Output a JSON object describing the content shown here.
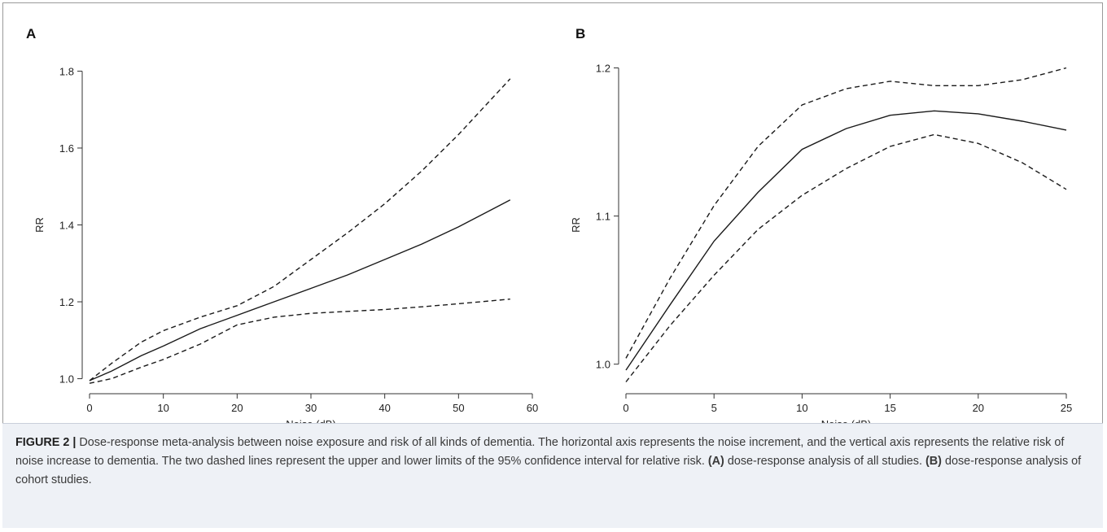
{
  "chart_data": [
    {
      "panel": "A",
      "type": "line",
      "xlabel": "Noise (dB)",
      "ylabel": "RR",
      "xlim": [
        0,
        60
      ],
      "ylim": [
        0.98,
        1.82
      ],
      "xticks": [
        0,
        10,
        20,
        30,
        40,
        50,
        60
      ],
      "yticks": [
        1.0,
        1.2,
        1.4,
        1.6,
        1.8
      ],
      "ytick_labels": [
        "1.0",
        "1.2",
        "1.4",
        "1.6",
        "1.8"
      ],
      "grid": false,
      "series": [
        {
          "style": "solid",
          "x": [
            0,
            3,
            7,
            10,
            15,
            20,
            25,
            30,
            35,
            40,
            45,
            50,
            57
          ],
          "y": [
            0.995,
            1.02,
            1.06,
            1.085,
            1.13,
            1.165,
            1.2,
            1.235,
            1.27,
            1.31,
            1.35,
            1.395,
            1.465
          ]
        },
        {
          "style": "dashed",
          "x": [
            0,
            3,
            7,
            10,
            15,
            20,
            25,
            30,
            35,
            40,
            45,
            50,
            57
          ],
          "y": [
            0.995,
            1.04,
            1.095,
            1.125,
            1.16,
            1.19,
            1.24,
            1.31,
            1.38,
            1.455,
            1.54,
            1.635,
            1.78
          ]
        },
        {
          "style": "dashed",
          "x": [
            0,
            3,
            7,
            10,
            15,
            20,
            25,
            30,
            35,
            40,
            45,
            50,
            57
          ],
          "y": [
            0.988,
            1.0,
            1.03,
            1.05,
            1.09,
            1.14,
            1.16,
            1.17,
            1.175,
            1.18,
            1.187,
            1.195,
            1.207
          ]
        }
      ]
    },
    {
      "panel": "B",
      "type": "line",
      "xlabel": "Noise (dB)",
      "ylabel": "RR",
      "xlim": [
        0,
        25
      ],
      "ylim": [
        0.985,
        1.203
      ],
      "xticks": [
        0,
        5,
        10,
        15,
        20,
        25
      ],
      "yticks": [
        1.0,
        1.1,
        1.2
      ],
      "ytick_labels": [
        "1.0",
        "1.1",
        "1.2"
      ],
      "grid": false,
      "series": [
        {
          "style": "solid",
          "x": [
            0,
            2.5,
            5,
            7.5,
            10,
            12.5,
            15,
            17.5,
            20,
            22.5,
            25
          ],
          "y": [
            0.996,
            1.04,
            1.083,
            1.116,
            1.145,
            1.159,
            1.168,
            1.171,
            1.169,
            1.164,
            1.158
          ]
        },
        {
          "style": "dashed",
          "x": [
            0,
            2.5,
            5,
            7.5,
            10,
            12.5,
            15,
            17.5,
            20,
            22.5,
            25
          ],
          "y": [
            1.004,
            1.058,
            1.107,
            1.147,
            1.175,
            1.186,
            1.191,
            1.188,
            1.188,
            1.192,
            1.2
          ]
        },
        {
          "style": "dashed",
          "x": [
            0,
            2.5,
            5,
            7.5,
            10,
            12.5,
            15,
            17.5,
            20,
            22.5,
            25
          ],
          "y": [
            0.988,
            1.026,
            1.06,
            1.091,
            1.114,
            1.132,
            1.147,
            1.155,
            1.149,
            1.136,
            1.118
          ]
        }
      ]
    }
  ],
  "caption": {
    "figure_label": "FIGURE 2 |",
    "text_1": " Dose-response meta-analysis between noise exposure and risk of all kinds of dementia. The horizontal axis represents the noise increment, and the vertical axis represents the relative risk of noise increase to dementia. The two dashed lines represent the upper and lower limits of the 95% confidence interval for relative risk. ",
    "label_a": "(A)",
    "text_2": " dose-response analysis of all studies. ",
    "label_b": "(B)",
    "text_3": " dose-response analysis of cohort studies."
  },
  "colors": {
    "line": "#1a1a1a",
    "caption_bg": "#eef1f6"
  }
}
